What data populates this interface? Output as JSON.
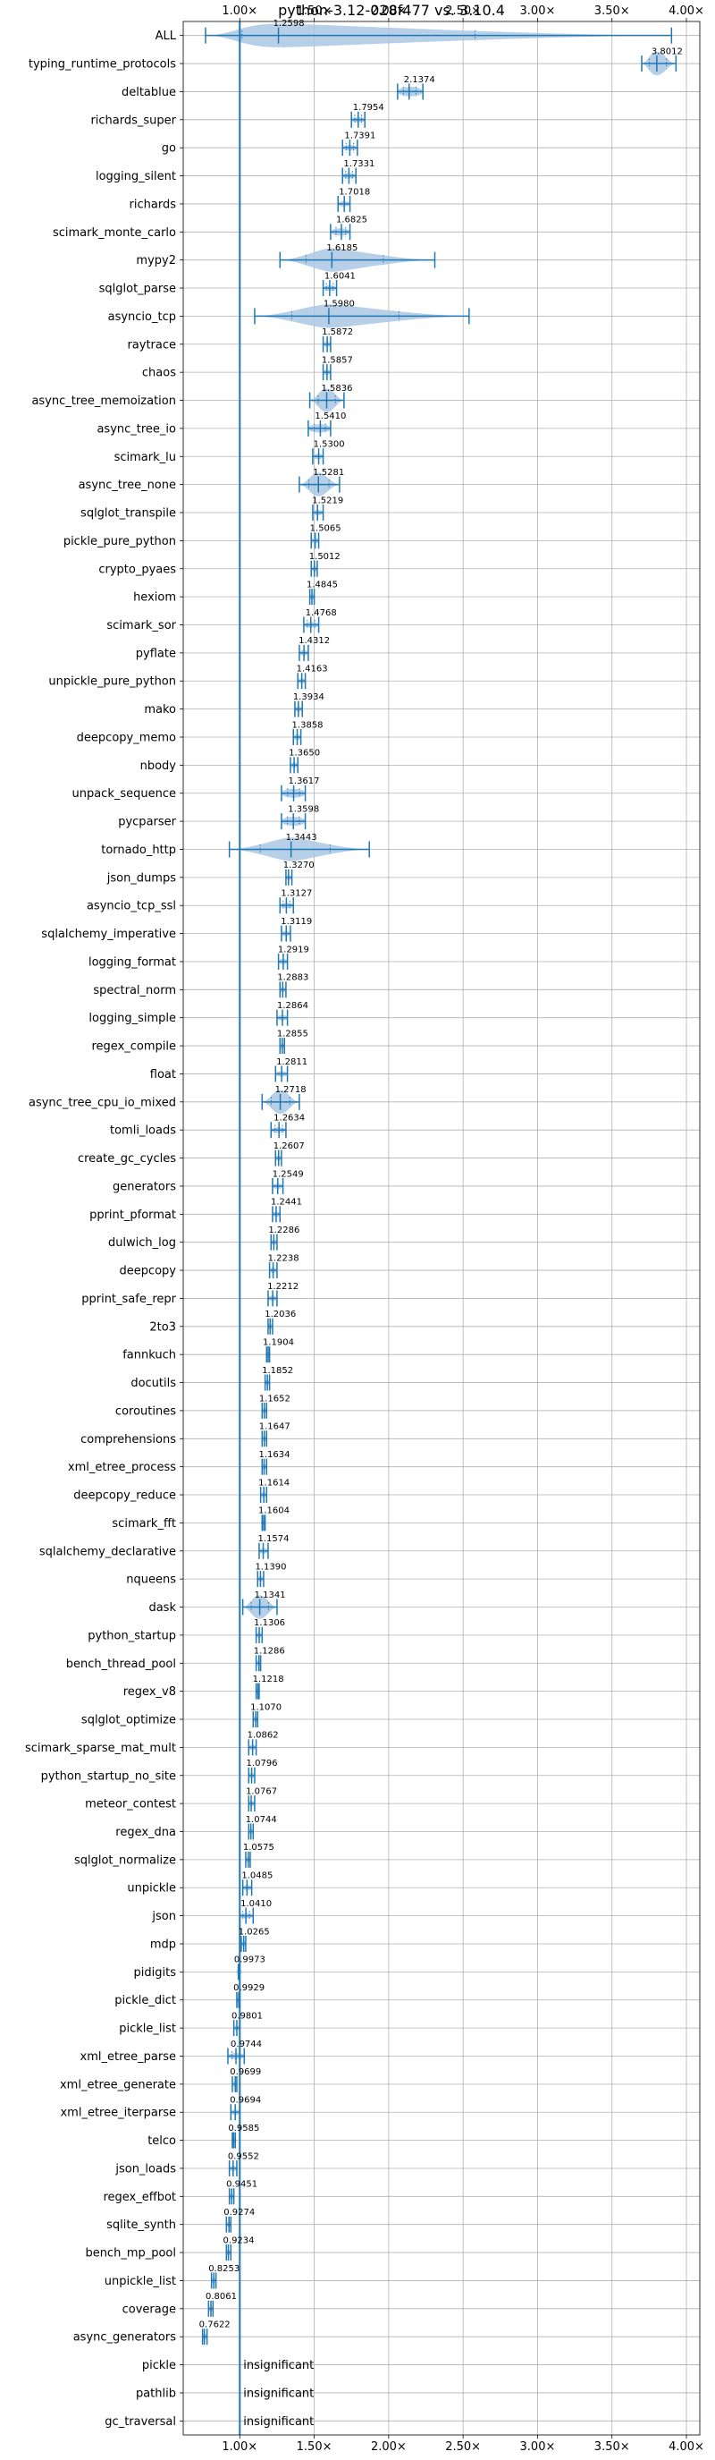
{
  "chart_data": {
    "type": "violin",
    "title": "python-3.12-028f477 vs. 3.10.4",
    "xlabel": "",
    "ylabel": "",
    "xlim": [
      0.62,
      4.09
    ],
    "xticks": [
      1.0,
      1.5,
      2.0,
      2.5,
      3.0,
      3.5,
      4.0
    ],
    "xtick_labels": [
      "1.00×",
      "1.50×",
      "2.00×",
      "2.50×",
      "3.00×",
      "3.50×",
      "4.00×"
    ],
    "xaxis_position": "top",
    "reference_line": 1.0,
    "grid": true,
    "colors": {
      "violin": "#aac8e4",
      "line": "#1f77b4",
      "insignificant_line": "#1f77b4"
    },
    "insignificant_text": "insignificant",
    "benchmarks": [
      {
        "name": "ALL",
        "value": 1.2598,
        "label": "1.2598",
        "min": 0.77,
        "max": 3.9,
        "spread": 0.06
      },
      {
        "name": "typing_runtime_protocols",
        "value": 3.8012,
        "label": "3.8012",
        "min": 3.7,
        "max": 3.93,
        "spread": 0.06
      },
      {
        "name": "deltablue",
        "value": 2.1374,
        "label": "2.1374",
        "min": 2.06,
        "max": 2.23,
        "spread": 0.06
      },
      {
        "name": "richards_super",
        "value": 1.7954,
        "label": "1.7954",
        "min": 1.75,
        "max": 1.84,
        "spread": 0.05
      },
      {
        "name": "go",
        "value": 1.7391,
        "label": "1.7391",
        "min": 1.69,
        "max": 1.79,
        "spread": 0.05
      },
      {
        "name": "logging_silent",
        "value": 1.7331,
        "label": "1.7331",
        "min": 1.69,
        "max": 1.78,
        "spread": 0.05
      },
      {
        "name": "richards",
        "value": 1.7018,
        "label": "1.7018",
        "min": 1.66,
        "max": 1.74,
        "spread": 0.05
      },
      {
        "name": "scimark_monte_carlo",
        "value": 1.6825,
        "label": "1.6825",
        "min": 1.61,
        "max": 1.74,
        "spread": 0.05
      },
      {
        "name": "mypy2",
        "value": 1.6185,
        "label": "1.6185",
        "min": 1.27,
        "max": 2.31,
        "spread": 0.07
      },
      {
        "name": "sqlglot_parse",
        "value": 1.6041,
        "label": "1.6041",
        "min": 1.56,
        "max": 1.65,
        "spread": 0.05
      },
      {
        "name": "asyncio_tcp",
        "value": 1.598,
        "label": "1.5980",
        "min": 1.1,
        "max": 2.54,
        "spread": 0.07
      },
      {
        "name": "raytrace",
        "value": 1.5872,
        "label": "1.5872",
        "min": 1.56,
        "max": 1.61,
        "spread": 0.04
      },
      {
        "name": "chaos",
        "value": 1.5857,
        "label": "1.5857",
        "min": 1.56,
        "max": 1.61,
        "spread": 0.04
      },
      {
        "name": "async_tree_memoization",
        "value": 1.5836,
        "label": "1.5836",
        "min": 1.47,
        "max": 1.7,
        "spread": 0.06
      },
      {
        "name": "async_tree_io",
        "value": 1.541,
        "label": "1.5410",
        "min": 1.46,
        "max": 1.61,
        "spread": 0.05
      },
      {
        "name": "scimark_lu",
        "value": 1.53,
        "label": "1.5300",
        "min": 1.49,
        "max": 1.56,
        "spread": 0.04
      },
      {
        "name": "async_tree_none",
        "value": 1.5281,
        "label": "1.5281",
        "min": 1.4,
        "max": 1.67,
        "spread": 0.06
      },
      {
        "name": "sqlglot_transpile",
        "value": 1.5219,
        "label": "1.5219",
        "min": 1.49,
        "max": 1.56,
        "spread": 0.04
      },
      {
        "name": "pickle_pure_python",
        "value": 1.5065,
        "label": "1.5065",
        "min": 1.48,
        "max": 1.53,
        "spread": 0.04
      },
      {
        "name": "crypto_pyaes",
        "value": 1.5012,
        "label": "1.5012",
        "min": 1.48,
        "max": 1.52,
        "spread": 0.04
      },
      {
        "name": "hexiom",
        "value": 1.4845,
        "label": "1.4845",
        "min": 1.47,
        "max": 1.5,
        "spread": 0.03
      },
      {
        "name": "scimark_sor",
        "value": 1.4768,
        "label": "1.4768",
        "min": 1.43,
        "max": 1.53,
        "spread": 0.05
      },
      {
        "name": "pyflate",
        "value": 1.4312,
        "label": "1.4312",
        "min": 1.4,
        "max": 1.46,
        "spread": 0.04
      },
      {
        "name": "unpickle_pure_python",
        "value": 1.4163,
        "label": "1.4163",
        "min": 1.39,
        "max": 1.44,
        "spread": 0.04
      },
      {
        "name": "mako",
        "value": 1.3934,
        "label": "1.3934",
        "min": 1.37,
        "max": 1.42,
        "spread": 0.04
      },
      {
        "name": "deepcopy_memo",
        "value": 1.3858,
        "label": "1.3858",
        "min": 1.36,
        "max": 1.41,
        "spread": 0.04
      },
      {
        "name": "nbody",
        "value": 1.365,
        "label": "1.3650",
        "min": 1.34,
        "max": 1.39,
        "spread": 0.04
      },
      {
        "name": "unpack_sequence",
        "value": 1.3617,
        "label": "1.3617",
        "min": 1.28,
        "max": 1.44,
        "spread": 0.05
      },
      {
        "name": "pycparser",
        "value": 1.3598,
        "label": "1.3598",
        "min": 1.28,
        "max": 1.44,
        "spread": 0.06
      },
      {
        "name": "tornado_http",
        "value": 1.3443,
        "label": "1.3443",
        "min": 0.93,
        "max": 1.87,
        "spread": 0.06
      },
      {
        "name": "json_dumps",
        "value": 1.327,
        "label": "1.3270",
        "min": 1.31,
        "max": 1.35,
        "spread": 0.03
      },
      {
        "name": "asyncio_tcp_ssl",
        "value": 1.3127,
        "label": "1.3127",
        "min": 1.27,
        "max": 1.36,
        "spread": 0.04
      },
      {
        "name": "sqlalchemy_imperative",
        "value": 1.3119,
        "label": "1.3119",
        "min": 1.28,
        "max": 1.34,
        "spread": 0.04
      },
      {
        "name": "logging_format",
        "value": 1.2919,
        "label": "1.2919",
        "min": 1.26,
        "max": 1.32,
        "spread": 0.04
      },
      {
        "name": "spectral_norm",
        "value": 1.2883,
        "label": "1.2883",
        "min": 1.27,
        "max": 1.31,
        "spread": 0.03
      },
      {
        "name": "logging_simple",
        "value": 1.2864,
        "label": "1.2864",
        "min": 1.25,
        "max": 1.32,
        "spread": 0.04
      },
      {
        "name": "regex_compile",
        "value": 1.2855,
        "label": "1.2855",
        "min": 1.27,
        "max": 1.3,
        "spread": 0.03
      },
      {
        "name": "float",
        "value": 1.2811,
        "label": "1.2811",
        "min": 1.24,
        "max": 1.32,
        "spread": 0.04
      },
      {
        "name": "async_tree_cpu_io_mixed",
        "value": 1.2718,
        "label": "1.2718",
        "min": 1.15,
        "max": 1.4,
        "spread": 0.06
      },
      {
        "name": "tomli_loads",
        "value": 1.2634,
        "label": "1.2634",
        "min": 1.21,
        "max": 1.31,
        "spread": 0.05
      },
      {
        "name": "create_gc_cycles",
        "value": 1.2607,
        "label": "1.2607",
        "min": 1.24,
        "max": 1.28,
        "spread": 0.03
      },
      {
        "name": "generators",
        "value": 1.2549,
        "label": "1.2549",
        "min": 1.22,
        "max": 1.29,
        "spread": 0.04
      },
      {
        "name": "pprint_pformat",
        "value": 1.2441,
        "label": "1.2441",
        "min": 1.22,
        "max": 1.27,
        "spread": 0.03
      },
      {
        "name": "dulwich_log",
        "value": 1.2286,
        "label": "1.2286",
        "min": 1.21,
        "max": 1.25,
        "spread": 0.03
      },
      {
        "name": "deepcopy",
        "value": 1.2238,
        "label": "1.2238",
        "min": 1.2,
        "max": 1.25,
        "spread": 0.03
      },
      {
        "name": "pprint_safe_repr",
        "value": 1.2212,
        "label": "1.2212",
        "min": 1.19,
        "max": 1.25,
        "spread": 0.04
      },
      {
        "name": "2to3",
        "value": 1.2036,
        "label": "1.2036",
        "min": 1.19,
        "max": 1.22,
        "spread": 0.03
      },
      {
        "name": "fannkuch",
        "value": 1.1904,
        "label": "1.1904",
        "min": 1.18,
        "max": 1.2,
        "spread": 0.02
      },
      {
        "name": "docutils",
        "value": 1.1852,
        "label": "1.1852",
        "min": 1.17,
        "max": 1.2,
        "spread": 0.03
      },
      {
        "name": "coroutines",
        "value": 1.1652,
        "label": "1.1652",
        "min": 1.15,
        "max": 1.18,
        "spread": 0.03
      },
      {
        "name": "comprehensions",
        "value": 1.1647,
        "label": "1.1647",
        "min": 1.15,
        "max": 1.18,
        "spread": 0.03
      },
      {
        "name": "xml_etree_process",
        "value": 1.1634,
        "label": "1.1634",
        "min": 1.15,
        "max": 1.18,
        "spread": 0.03
      },
      {
        "name": "deepcopy_reduce",
        "value": 1.1614,
        "label": "1.1614",
        "min": 1.14,
        "max": 1.18,
        "spread": 0.03
      },
      {
        "name": "scimark_fft",
        "value": 1.1604,
        "label": "1.1604",
        "min": 1.15,
        "max": 1.17,
        "spread": 0.02
      },
      {
        "name": "sqlalchemy_declarative",
        "value": 1.1574,
        "label": "1.1574",
        "min": 1.13,
        "max": 1.19,
        "spread": 0.04
      },
      {
        "name": "nqueens",
        "value": 1.139,
        "label": "1.1390",
        "min": 1.12,
        "max": 1.16,
        "spread": 0.03
      },
      {
        "name": "dask",
        "value": 1.1341,
        "label": "1.1341",
        "min": 1.02,
        "max": 1.25,
        "spread": 0.06
      },
      {
        "name": "python_startup",
        "value": 1.1306,
        "label": "1.1306",
        "min": 1.11,
        "max": 1.15,
        "spread": 0.03
      },
      {
        "name": "bench_thread_pool",
        "value": 1.1286,
        "label": "1.1286",
        "min": 1.11,
        "max": 1.14,
        "spread": 0.03
      },
      {
        "name": "regex_v8",
        "value": 1.1218,
        "label": "1.1218",
        "min": 1.11,
        "max": 1.13,
        "spread": 0.02
      },
      {
        "name": "sqlglot_optimize",
        "value": 1.107,
        "label": "1.1070",
        "min": 1.09,
        "max": 1.12,
        "spread": 0.03
      },
      {
        "name": "scimark_sparse_mat_mult",
        "value": 1.0862,
        "label": "1.0862",
        "min": 1.06,
        "max": 1.11,
        "spread": 0.03
      },
      {
        "name": "python_startup_no_site",
        "value": 1.0796,
        "label": "1.0796",
        "min": 1.06,
        "max": 1.1,
        "spread": 0.03
      },
      {
        "name": "meteor_contest",
        "value": 1.0767,
        "label": "1.0767",
        "min": 1.06,
        "max": 1.1,
        "spread": 0.03
      },
      {
        "name": "regex_dna",
        "value": 1.0744,
        "label": "1.0744",
        "min": 1.06,
        "max": 1.09,
        "spread": 0.02
      },
      {
        "name": "sqlglot_normalize",
        "value": 1.0575,
        "label": "1.0575",
        "min": 1.04,
        "max": 1.07,
        "spread": 0.02
      },
      {
        "name": "unpickle",
        "value": 1.0485,
        "label": "1.0485",
        "min": 1.02,
        "max": 1.08,
        "spread": 0.03
      },
      {
        "name": "json",
        "value": 1.041,
        "label": "1.0410",
        "min": 1.0,
        "max": 1.09,
        "spread": 0.04
      },
      {
        "name": "mdp",
        "value": 1.0265,
        "label": "1.0265",
        "min": 1.01,
        "max": 1.04,
        "spread": 0.02
      },
      {
        "name": "pidigits",
        "value": 0.9973,
        "label": "0.9973",
        "min": 0.99,
        "max": 1.0,
        "spread": 0.02
      },
      {
        "name": "pickle_dict",
        "value": 0.9929,
        "label": "0.9929",
        "min": 0.98,
        "max": 1.0,
        "spread": 0.02
      },
      {
        "name": "pickle_list",
        "value": 0.9801,
        "label": "0.9801",
        "min": 0.96,
        "max": 1.0,
        "spread": 0.03
      },
      {
        "name": "xml_etree_parse",
        "value": 0.9744,
        "label": "0.9744",
        "min": 0.92,
        "max": 1.03,
        "spread": 0.05
      },
      {
        "name": "xml_etree_generate",
        "value": 0.9699,
        "label": "0.9699",
        "min": 0.95,
        "max": 0.98,
        "spread": 0.02
      },
      {
        "name": "xml_etree_iterparse",
        "value": 0.9694,
        "label": "0.9694",
        "min": 0.94,
        "max": 1.0,
        "spread": 0.04
      },
      {
        "name": "telco",
        "value": 0.9585,
        "label": "0.9585",
        "min": 0.95,
        "max": 0.97,
        "spread": 0.02
      },
      {
        "name": "json_loads",
        "value": 0.9552,
        "label": "0.9552",
        "min": 0.93,
        "max": 0.98,
        "spread": 0.03
      },
      {
        "name": "regex_effbot",
        "value": 0.9451,
        "label": "0.9451",
        "min": 0.93,
        "max": 0.96,
        "spread": 0.02
      },
      {
        "name": "sqlite_synth",
        "value": 0.9274,
        "label": "0.9274",
        "min": 0.91,
        "max": 0.94,
        "spread": 0.02
      },
      {
        "name": "bench_mp_pool",
        "value": 0.9234,
        "label": "0.9234",
        "min": 0.91,
        "max": 0.94,
        "spread": 0.02
      },
      {
        "name": "unpickle_list",
        "value": 0.8253,
        "label": "0.8253",
        "min": 0.81,
        "max": 0.84,
        "spread": 0.02
      },
      {
        "name": "coverage",
        "value": 0.8061,
        "label": "0.8061",
        "min": 0.79,
        "max": 0.82,
        "spread": 0.02
      },
      {
        "name": "async_generators",
        "value": 0.7622,
        "label": "0.7622",
        "min": 0.75,
        "max": 0.78,
        "spread": 0.02
      },
      {
        "name": "pickle",
        "insignificant": true
      },
      {
        "name": "pathlib",
        "insignificant": true
      },
      {
        "name": "gc_traversal",
        "insignificant": true
      }
    ]
  }
}
